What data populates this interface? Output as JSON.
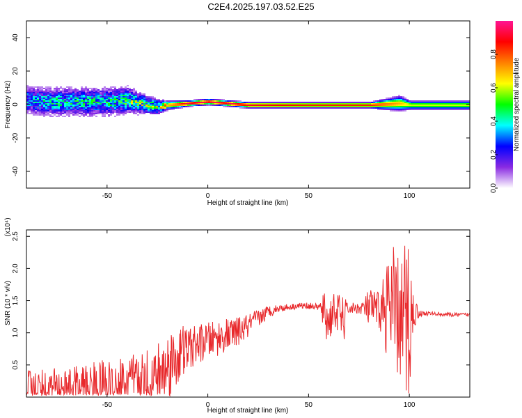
{
  "title": "C2E4.2025.197.03.52.E25",
  "chart_data": [
    {
      "type": "heatmap",
      "xlabel": "Height of straight line (km)",
      "ylabel": "Frequency (Hz)",
      "xlim": [
        -90,
        130
      ],
      "ylim": [
        -50,
        50
      ],
      "xticks": [
        -50,
        0,
        50,
        100
      ],
      "yticks": [
        -40,
        -20,
        0,
        20,
        40
      ],
      "colorbar": {
        "label": "Normalized spectral amplitude",
        "range": [
          0,
          1
        ],
        "ticks": [
          0.0,
          0.2,
          0.4,
          0.6,
          0.8
        ],
        "tick_labels": [
          "0.0",
          "0.2",
          "0.4",
          "0.6",
          "0.8"
        ],
        "colors": [
          "#ffffff",
          "#8a2be2",
          "#0000ff",
          "#00ffff",
          "#00ff00",
          "#ffff00",
          "#ff8000",
          "#ff0000",
          "#ff1493"
        ]
      },
      "ridge": {
        "x": [
          -88,
          -80,
          -70,
          -60,
          -50,
          -40,
          -30,
          -25,
          -20,
          -10,
          0,
          10,
          20,
          50,
          80,
          95,
          100,
          130
        ],
        "y": [
          3,
          2,
          2,
          2,
          2,
          3,
          0,
          -1,
          0,
          1,
          2,
          1,
          0,
          0,
          0,
          1,
          0,
          0
        ],
        "amplitude": [
          0.35,
          0.4,
          0.4,
          0.4,
          0.4,
          0.5,
          0.55,
          0.6,
          0.7,
          0.95,
          0.95,
          0.95,
          0.9,
          0.85,
          0.85,
          0.7,
          0.6,
          0.6
        ],
        "spread_hz": [
          10,
          10,
          10,
          10,
          10,
          9,
          6,
          5,
          3,
          2,
          2,
          2,
          2,
          2,
          2,
          5,
          3,
          3
        ]
      }
    },
    {
      "type": "line",
      "xlabel": "Height of straight line (km)",
      "ylabel": "SNR (10 * v/v)",
      "yscale_label": "(x10⁴)",
      "xlim": [
        -90,
        130
      ],
      "ylim": [
        0,
        2.6
      ],
      "xticks": [
        -50,
        0,
        50,
        100
      ],
      "yticks": [
        0.5,
        1.0,
        1.5,
        2.0,
        2.5
      ],
      "ytick_labels": [
        "0.5",
        "1.0",
        "1.5",
        "2.0",
        "2.5"
      ],
      "color": "#e8282b",
      "series": [
        {
          "x": [
            -90,
            -80,
            -70,
            -60,
            -50,
            -40,
            -30,
            -25,
            -20,
            -15,
            -10,
            -5,
            0,
            5,
            10,
            15,
            20,
            25,
            30,
            35,
            40,
            45,
            50,
            55,
            58,
            60,
            62,
            65,
            68,
            70,
            75,
            80,
            85,
            90,
            92,
            95,
            98,
            100,
            102,
            105,
            110,
            120,
            130
          ],
          "values": [
            0.15,
            0.15,
            0.15,
            0.17,
            0.2,
            0.22,
            0.25,
            0.3,
            0.45,
            0.65,
            0.75,
            0.82,
            0.88,
            0.92,
            0.97,
            1.02,
            1.1,
            1.22,
            1.33,
            1.38,
            1.4,
            1.42,
            1.42,
            1.4,
            1.3,
            1.15,
            1.35,
            1.3,
            1.2,
            1.38,
            1.38,
            1.38,
            1.35,
            1.4,
            1.2,
            1.25,
            1.1,
            1.2,
            1.32,
            1.3,
            1.3,
            1.28,
            1.28
          ],
          "noise": [
            0.3,
            0.3,
            0.3,
            0.35,
            0.4,
            0.45,
            0.5,
            0.55,
            0.6,
            0.5,
            0.35,
            0.3,
            0.28,
            0.28,
            0.25,
            0.22,
            0.2,
            0.15,
            0.1,
            0.06,
            0.05,
            0.05,
            0.05,
            0.05,
            0.35,
            0.4,
            0.3,
            0.3,
            0.35,
            0.1,
            0.08,
            0.3,
            0.3,
            0.9,
            1.2,
            0.9,
            1.4,
            1.4,
            0.3,
            0.05,
            0.03,
            0.03,
            0.03
          ]
        }
      ]
    }
  ]
}
